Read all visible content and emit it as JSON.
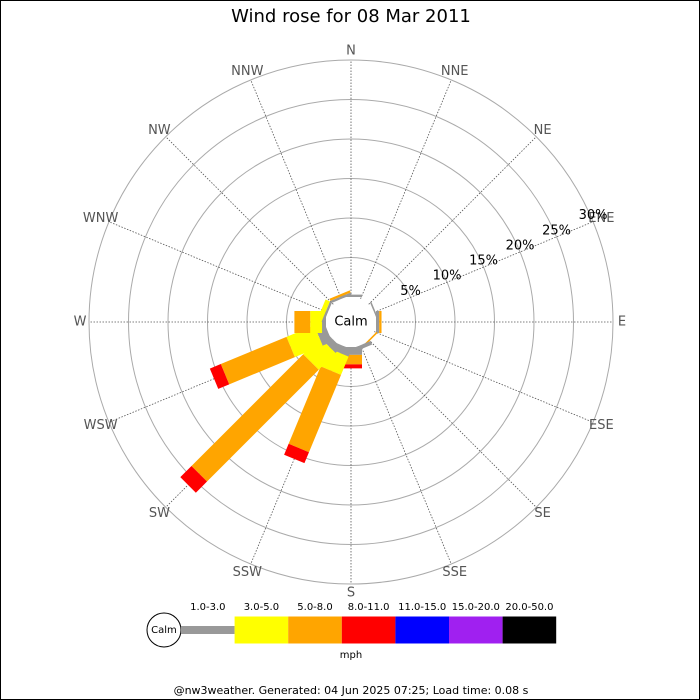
{
  "chart_data": {
    "type": "windrose",
    "title": "Wind rose for 08 Mar 2011",
    "directions": [
      "N",
      "NNE",
      "NE",
      "ENE",
      "E",
      "ESE",
      "SE",
      "SSE",
      "S",
      "SSW",
      "SW",
      "WSW",
      "W",
      "WNW",
      "NW",
      "NNW"
    ],
    "rlim": [
      0,
      30
    ],
    "rticks": [
      {
        "value": 5,
        "label": "5%"
      },
      {
        "value": 10,
        "label": "10%"
      },
      {
        "value": 15,
        "label": "15%"
      },
      {
        "value": 20,
        "label": "20%"
      },
      {
        "value": 25,
        "label": "25%"
      },
      {
        "value": 30,
        "label": "30%"
      }
    ],
    "calm_label": "Calm",
    "unit_label": "mph",
    "series": [
      {
        "name": "1.0-3.0",
        "color": "#999999",
        "values": [
          0.3,
          0,
          0,
          0.2,
          0.4,
          0,
          0,
          0.5,
          1,
          1,
          1,
          1.3,
          0.5,
          0.3,
          0,
          0.3
        ]
      },
      {
        "name": "3.0-5.0",
        "color": "#ffff00",
        "values": [
          0,
          0,
          0,
          0,
          0,
          0,
          0,
          0,
          0,
          2.5,
          3,
          3.8,
          1.5,
          0.6,
          0,
          0
        ]
      },
      {
        "name": "5.0-8.0",
        "color": "#ffa500",
        "values": [
          0,
          0,
          0,
          0,
          0.3,
          0,
          0.2,
          0,
          1.2,
          10.6,
          20,
          9,
          2,
          0,
          0,
          0.3
        ]
      },
      {
        "name": "8.0-11.0",
        "color": "#ff0000",
        "values": [
          0,
          0,
          0,
          0,
          0,
          0,
          0,
          0,
          0.5,
          1.5,
          2,
          1.5,
          0,
          0,
          0,
          0
        ]
      },
      {
        "name": "11.0-15.0",
        "color": "#0000ff",
        "values": [
          0,
          0,
          0,
          0,
          0,
          0,
          0,
          0,
          0,
          0,
          0,
          0,
          0,
          0,
          0,
          0
        ]
      },
      {
        "name": "15.0-20.0",
        "color": "#a020f0",
        "values": [
          0,
          0,
          0,
          0,
          0,
          0,
          0,
          0,
          0,
          0,
          0,
          0,
          0,
          0,
          0,
          0
        ]
      },
      {
        "name": "20.0-50.0",
        "color": "#000000",
        "values": [
          0,
          0,
          0,
          0,
          0,
          0,
          0,
          0,
          0,
          0,
          0,
          0,
          0,
          0,
          0,
          0
        ]
      }
    ],
    "footer": "@nw3weather. Generated: 04 Jun 2025 07:25; Load time: 0.08 s"
  }
}
